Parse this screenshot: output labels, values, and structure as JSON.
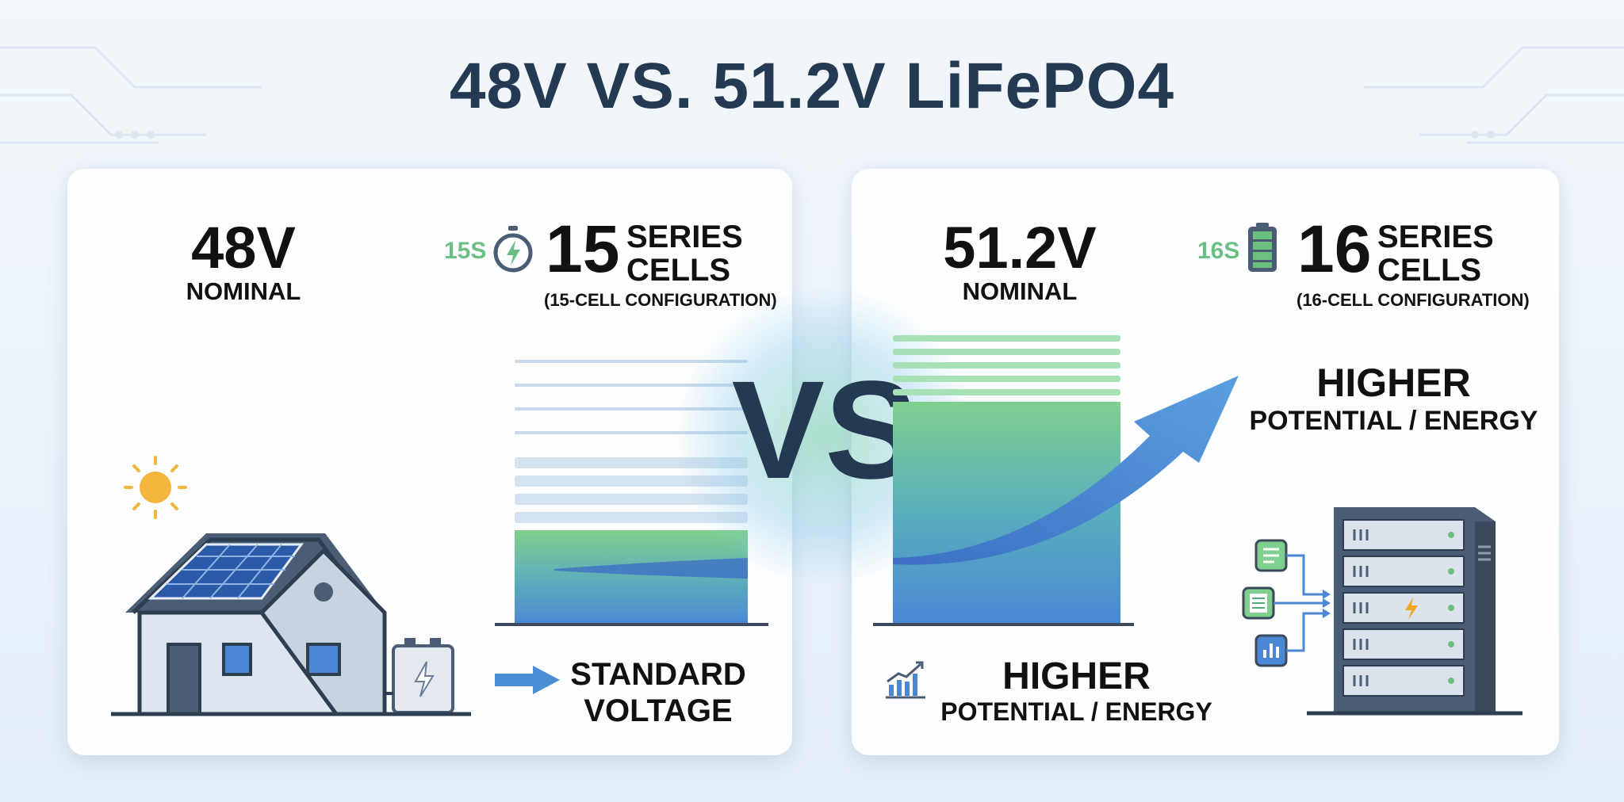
{
  "title": "48V VS. 51.2V LiFePO4",
  "vs_label": "VS",
  "left": {
    "voltage": "48V",
    "nominal": "NOMINAL",
    "series_badge": "15S",
    "series_icon": "stopwatch-bolt-icon",
    "series_count": "15",
    "series_word": "SERIES",
    "cells_word": "CELLS",
    "configuration": "(15-CELL CONFIGURATION)",
    "caption_line1": "STANDARD",
    "caption_line2": "VOLTAGE"
  },
  "right": {
    "voltage": "51.2V",
    "nominal": "NOMINAL",
    "series_badge": "16S",
    "series_icon": "battery-icon",
    "series_count": "16",
    "series_word": "SERIES",
    "cells_word": "CELLS",
    "configuration": "(16-CELL CONFIGURATION)",
    "upper_caption_line1": "HIGHER",
    "upper_caption_line2": "POTENTIAL / ENERGY",
    "lower_caption_line1": "HIGHER",
    "lower_caption_line2": "POTENTIAL / ENERGY"
  },
  "colors": {
    "title": "#233a52",
    "accent_green": "#6cbf84",
    "accent_blue": "#4a8fd6",
    "card": "#ffffff"
  }
}
